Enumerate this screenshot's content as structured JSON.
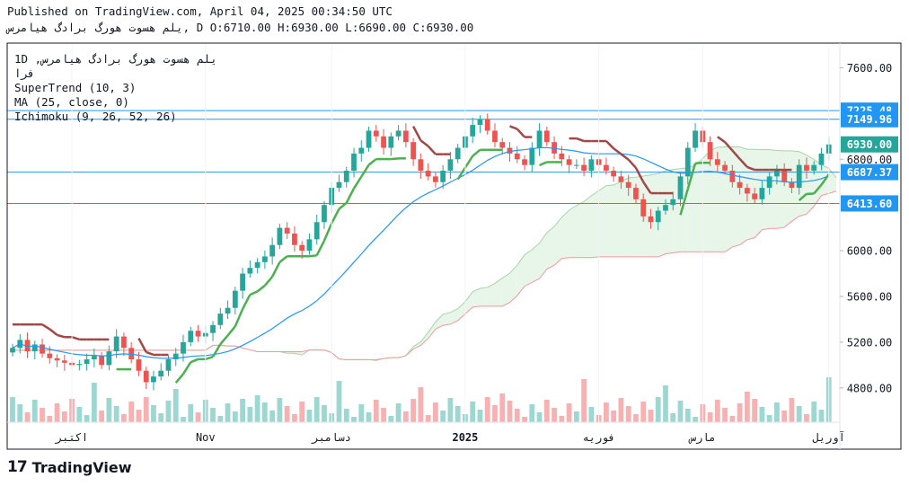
{
  "header": {
    "published": "Published on TradingView.com, April 04, 2025 00:34:50 UTC",
    "symbol_line": "يلم هسوت هورگ برادگ هيامرس, D O:6710.00 H:6930.00 L:6690.00 C:6930.00"
  },
  "legend": {
    "symbol": "1D ,يلم هسوت هورگ برادگ هيامرس",
    "exchange": "فرا",
    "supertrend": "SuperTrend (10, 3)",
    "ma": "MA (25, close, 0)",
    "ichimoku": "Ichimoku (9, 26, 52, 26)"
  },
  "branding": {
    "logo_text": "TradingView",
    "logo_mark": "17"
  },
  "colors": {
    "up": "#26a69a",
    "down": "#ef5350",
    "supertrend_up": "#4caf50",
    "supertrend_down": "#a04848",
    "ma": "#2196f3",
    "cloud_green": "#e8f5e9",
    "cloud_red": "#fde8e8",
    "hline": "#2196f3"
  },
  "chart_data": {
    "type": "candlestick",
    "y_ticks": [
      7600,
      6800,
      6000,
      5600,
      5200,
      4800
    ],
    "y_ticks_labels": [
      "7600.00",
      "6800.00",
      "6000.00",
      "5600.00",
      "5200.00",
      "4800.00"
    ],
    "ylim": [
      4500,
      7800
    ],
    "x_ticks": [
      {
        "label": "اکتبر",
        "index": 8
      },
      {
        "label": "Nov",
        "index": 26
      },
      {
        "label": "دسامبر",
        "index": 43
      },
      {
        "label": "2025",
        "index": 61
      },
      {
        "label": "فوریه",
        "index": 79
      },
      {
        "label": "مارس",
        "index": 93
      },
      {
        "label": "آوریل",
        "index": 110
      }
    ],
    "horizontal_levels": [
      {
        "value": 7225.48,
        "label": "7225.48"
      },
      {
        "value": 7149.96,
        "label": "7149.96"
      },
      {
        "value": 6687.37,
        "label": "6687.37"
      },
      {
        "value": 6413.6,
        "label": "6413.60"
      }
    ],
    "last_price": {
      "value": 6930.0,
      "label": "6930.00"
    },
    "closes": [
      5150,
      5220,
      5120,
      5180,
      5100,
      5060,
      5040,
      5020,
      5000,
      5010,
      5050,
      5080,
      5000,
      5120,
      5250,
      5150,
      5050,
      4950,
      4850,
      4900,
      4950,
      5050,
      5100,
      5200,
      5300,
      5250,
      5280,
      5350,
      5450,
      5500,
      5650,
      5800,
      5850,
      5900,
      5950,
      6050,
      6200,
      6150,
      6050,
      6000,
      6100,
      6250,
      6400,
      6550,
      6600,
      6700,
      6850,
      6900,
      7050,
      7000,
      6900,
      7000,
      7050,
      6950,
      6800,
      6700,
      6650,
      6600,
      6700,
      6800,
      6900,
      7000,
      7100,
      7150,
      7050,
      6950,
      6900,
      6850,
      6800,
      6750,
      6900,
      7050,
      6950,
      6850,
      6800,
      6750,
      6750,
      6700,
      6800,
      6750,
      6700,
      6650,
      6600,
      6550,
      6450,
      6300,
      6250,
      6350,
      6400,
      6450,
      6650,
      6900,
      7050,
      6950,
      6800,
      6750,
      6700,
      6600,
      6550,
      6500,
      6450,
      6550,
      6650,
      6700,
      6600,
      6550,
      6750,
      6700,
      6750,
      6850,
      6930
    ]
  }
}
